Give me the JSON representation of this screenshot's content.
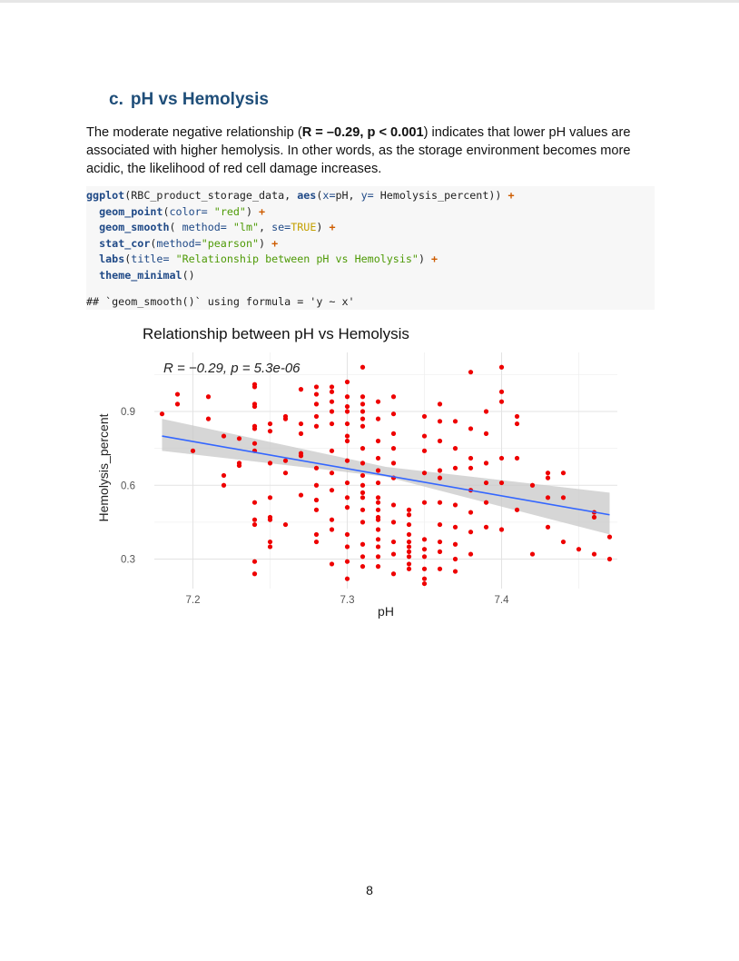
{
  "section": {
    "number": "c.",
    "title": "pH vs Hemolysis"
  },
  "paragraph": {
    "before": "The moderate negative relationship (",
    "bold": "R = –0.29, p < 0.001",
    "after": ") indicates that lower pH values are associated with higher hemolysis. In other words, as the storage environment becomes more acidic, the likelihood of red cell damage increases."
  },
  "code": {
    "lines": [
      "ggplot(RBC_product_storage_data, aes(x=pH, y= Hemolysis_percent)) +",
      "  geom_point(color= \"red\") +",
      "  geom_smooth( method= \"lm\", se=TRUE) +",
      "  stat_cor(method=\"pearson\") +",
      "  labs(title= \"Relationship between pH vs Hemolysis\") +",
      "  theme_minimal()"
    ],
    "output": "## `geom_smooth()` using formula = 'y ~ x'"
  },
  "chart_data": {
    "type": "scatter",
    "title": "Relationship between pH vs Hemolysis",
    "annotation": "R = −0.29, p = 5.3e-06",
    "xlabel": "pH",
    "ylabel": "Hemolysis_percent",
    "xlim": [
      7.175,
      7.475
    ],
    "ylim": [
      0.18,
      1.14
    ],
    "xticks": [
      7.2,
      7.3,
      7.4
    ],
    "yticks": [
      0.3,
      0.6,
      0.9
    ],
    "grid": true,
    "point_color": "#ee0000",
    "line_color": "#3366ff",
    "band_color": "#c8c8c8",
    "fit": {
      "x": [
        7.18,
        7.47
      ],
      "y": [
        0.8,
        0.48
      ]
    },
    "band": {
      "x": [
        7.18,
        7.325,
        7.47
      ],
      "upper": [
        0.87,
        0.675,
        0.57
      ],
      "lower": [
        0.74,
        0.635,
        0.4
      ]
    },
    "points": {
      "x": [
        7.18,
        7.19,
        7.19,
        7.2,
        7.21,
        7.21,
        7.22,
        7.22,
        7.22,
        7.23,
        7.23,
        7.23,
        7.24,
        7.24,
        7.24,
        7.24,
        7.24,
        7.24,
        7.24,
        7.24,
        7.24,
        7.24,
        7.24,
        7.24,
        7.24,
        7.25,
        7.25,
        7.25,
        7.25,
        7.25,
        7.25,
        7.25,
        7.25,
        7.26,
        7.26,
        7.26,
        7.26,
        7.26,
        7.27,
        7.27,
        7.27,
        7.27,
        7.27,
        7.27,
        7.28,
        7.28,
        7.28,
        7.28,
        7.28,
        7.28,
        7.28,
        7.28,
        7.28,
        7.28,
        7.28,
        7.29,
        7.29,
        7.29,
        7.29,
        7.29,
        7.29,
        7.29,
        7.29,
        7.29,
        7.29,
        7.29,
        7.3,
        7.3,
        7.3,
        7.3,
        7.3,
        7.3,
        7.3,
        7.3,
        7.3,
        7.3,
        7.3,
        7.3,
        7.3,
        7.3,
        7.3,
        7.31,
        7.31,
        7.31,
        7.31,
        7.31,
        7.31,
        7.31,
        7.31,
        7.31,
        7.31,
        7.31,
        7.31,
        7.31,
        7.31,
        7.31,
        7.31,
        7.31,
        7.32,
        7.32,
        7.32,
        7.32,
        7.32,
        7.32,
        7.32,
        7.32,
        7.32,
        7.32,
        7.32,
        7.32,
        7.32,
        7.32,
        7.32,
        7.32,
        7.33,
        7.33,
        7.33,
        7.33,
        7.33,
        7.33,
        7.33,
        7.33,
        7.33,
        7.33,
        7.33,
        7.34,
        7.34,
        7.34,
        7.34,
        7.34,
        7.34,
        7.34,
        7.34,
        7.34,
        7.34,
        7.35,
        7.35,
        7.35,
        7.35,
        7.35,
        7.35,
        7.35,
        7.35,
        7.35,
        7.35,
        7.35,
        7.36,
        7.36,
        7.36,
        7.36,
        7.36,
        7.36,
        7.36,
        7.36,
        7.36,
        7.36,
        7.37,
        7.37,
        7.37,
        7.37,
        7.37,
        7.37,
        7.37,
        7.37,
        7.38,
        7.38,
        7.38,
        7.38,
        7.38,
        7.38,
        7.38,
        7.38,
        7.39,
        7.39,
        7.39,
        7.39,
        7.39,
        7.39,
        7.4,
        7.4,
        7.4,
        7.4,
        7.4,
        7.4,
        7.41,
        7.41,
        7.41,
        7.41,
        7.42,
        7.42,
        7.43,
        7.43,
        7.43,
        7.43,
        7.44,
        7.44,
        7.44,
        7.45,
        7.46,
        7.46,
        7.46,
        7.47,
        7.47
      ],
      "y": [
        0.89,
        0.97,
        0.93,
        0.74,
        0.96,
        0.87,
        0.8,
        0.64,
        0.6,
        0.79,
        0.69,
        0.68,
        1.0,
        0.93,
        0.84,
        0.83,
        0.77,
        0.74,
        0.53,
        0.46,
        0.44,
        0.29,
        0.24,
        1.01,
        0.92,
        0.82,
        0.85,
        0.47,
        0.46,
        0.55,
        0.37,
        0.35,
        0.69,
        0.88,
        0.87,
        0.65,
        0.7,
        0.44,
        0.99,
        0.85,
        0.81,
        0.72,
        0.73,
        0.56,
        1.0,
        0.97,
        0.93,
        0.88,
        0.84,
        0.67,
        0.6,
        0.54,
        0.5,
        0.4,
        0.37,
        1.0,
        0.98,
        0.94,
        0.9,
        0.85,
        0.74,
        0.65,
        0.58,
        0.46,
        0.42,
        0.28,
        1.02,
        0.96,
        0.9,
        0.85,
        0.8,
        0.7,
        0.61,
        0.55,
        0.51,
        0.4,
        0.35,
        0.29,
        0.92,
        0.78,
        0.22,
        1.08,
        0.96,
        0.93,
        0.9,
        0.87,
        0.75,
        0.69,
        0.6,
        0.55,
        0.5,
        0.45,
        0.36,
        0.31,
        0.84,
        0.64,
        0.57,
        0.27,
        0.94,
        0.87,
        0.78,
        0.71,
        0.61,
        0.55,
        0.5,
        0.46,
        0.42,
        0.38,
        0.35,
        0.31,
        0.27,
        0.66,
        0.53,
        0.47,
        0.96,
        0.89,
        0.81,
        0.75,
        0.69,
        0.63,
        0.52,
        0.45,
        0.37,
        0.32,
        0.24,
        0.5,
        0.48,
        0.44,
        0.4,
        0.37,
        0.35,
        0.33,
        0.31,
        0.28,
        0.26,
        0.88,
        0.8,
        0.74,
        0.65,
        0.53,
        0.38,
        0.34,
        0.31,
        0.26,
        0.22,
        0.2,
        0.93,
        0.86,
        0.78,
        0.66,
        0.63,
        0.53,
        0.44,
        0.37,
        0.33,
        0.26,
        0.86,
        0.75,
        0.67,
        0.52,
        0.43,
        0.36,
        0.3,
        0.25,
        1.06,
        0.83,
        0.71,
        0.67,
        0.58,
        0.49,
        0.41,
        0.32,
        0.9,
        0.81,
        0.69,
        0.61,
        0.53,
        0.43,
        1.08,
        0.98,
        0.94,
        0.71,
        0.61,
        0.42,
        0.88,
        0.85,
        0.71,
        0.5,
        0.6,
        0.32,
        0.65,
        0.63,
        0.55,
        0.43,
        0.65,
        0.55,
        0.37,
        0.34,
        0.49,
        0.47,
        0.32,
        0.39,
        0.3
      ]
    }
  },
  "page_number": "8"
}
